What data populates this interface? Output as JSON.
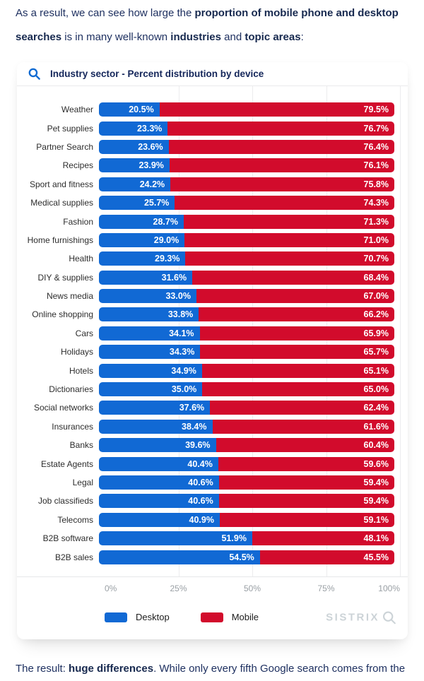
{
  "intro": {
    "segments": [
      {
        "text": "As a result, we can see how large the ",
        "bold": false
      },
      {
        "text": "proportion of mobile phone and desktop searches",
        "bold": true
      },
      {
        "text": " is in many well-known ",
        "bold": false
      },
      {
        "text": "industries",
        "bold": true
      },
      {
        "text": " and ",
        "bold": false
      },
      {
        "text": "topic areas",
        "bold": true
      },
      {
        "text": ":",
        "bold": false
      }
    ]
  },
  "outro": {
    "segments": [
      {
        "text": "The result: ",
        "bold": false
      },
      {
        "text": "huge differences",
        "bold": true
      },
      {
        "text": ". While only every fifth Google search comes from the",
        "bold": false
      }
    ]
  },
  "card": {
    "title": "Industry sector - Percent distribution by device",
    "search_icon": "magnifier-icon",
    "brand": "SISTRIX",
    "colors": {
      "desktop": "#1169d4",
      "mobile": "#d20b2c",
      "title_text": "#14265a",
      "axis_text": "#9aa0a5",
      "brand_text": "#ccd3d7"
    }
  },
  "chart_data": {
    "type": "bar",
    "orientation": "horizontal",
    "stacked": true,
    "title": "Industry sector - Percent distribution by device",
    "categories": [
      "Weather",
      "Pet supplies",
      "Partner Search",
      "Recipes",
      "Sport and fitness",
      "Medical supplies",
      "Fashion",
      "Home furnishings",
      "Health",
      "DIY & supplies",
      "News media",
      "Online shopping",
      "Cars",
      "Holidays",
      "Hotels",
      "Dictionaries",
      "Social networks",
      "Insurances",
      "Banks",
      "Estate Agents",
      "Legal",
      "Job classifieds",
      "Telecoms",
      "B2B software",
      "B2B sales"
    ],
    "series": [
      {
        "name": "Desktop",
        "color": "#1169d4",
        "values": [
          20.5,
          23.3,
          23.6,
          23.9,
          24.2,
          25.7,
          28.7,
          29.0,
          29.3,
          31.6,
          33.0,
          33.8,
          34.1,
          34.3,
          34.9,
          35.0,
          37.6,
          38.4,
          39.6,
          40.4,
          40.6,
          40.6,
          40.9,
          51.9,
          54.5
        ]
      },
      {
        "name": "Mobile",
        "color": "#d20b2c",
        "values": [
          79.5,
          76.7,
          76.4,
          76.1,
          75.8,
          74.3,
          71.3,
          71.0,
          70.7,
          68.4,
          67.0,
          66.2,
          65.9,
          65.7,
          65.1,
          65.0,
          62.4,
          61.6,
          60.4,
          59.6,
          59.4,
          59.4,
          59.1,
          48.1,
          45.5
        ]
      }
    ],
    "value_suffix": "%",
    "xlim": [
      0,
      100
    ],
    "x_tick_labels": [
      "0%",
      "25%",
      "50%",
      "75%",
      "100%"
    ],
    "grid": true,
    "legend_position": "bottom"
  }
}
